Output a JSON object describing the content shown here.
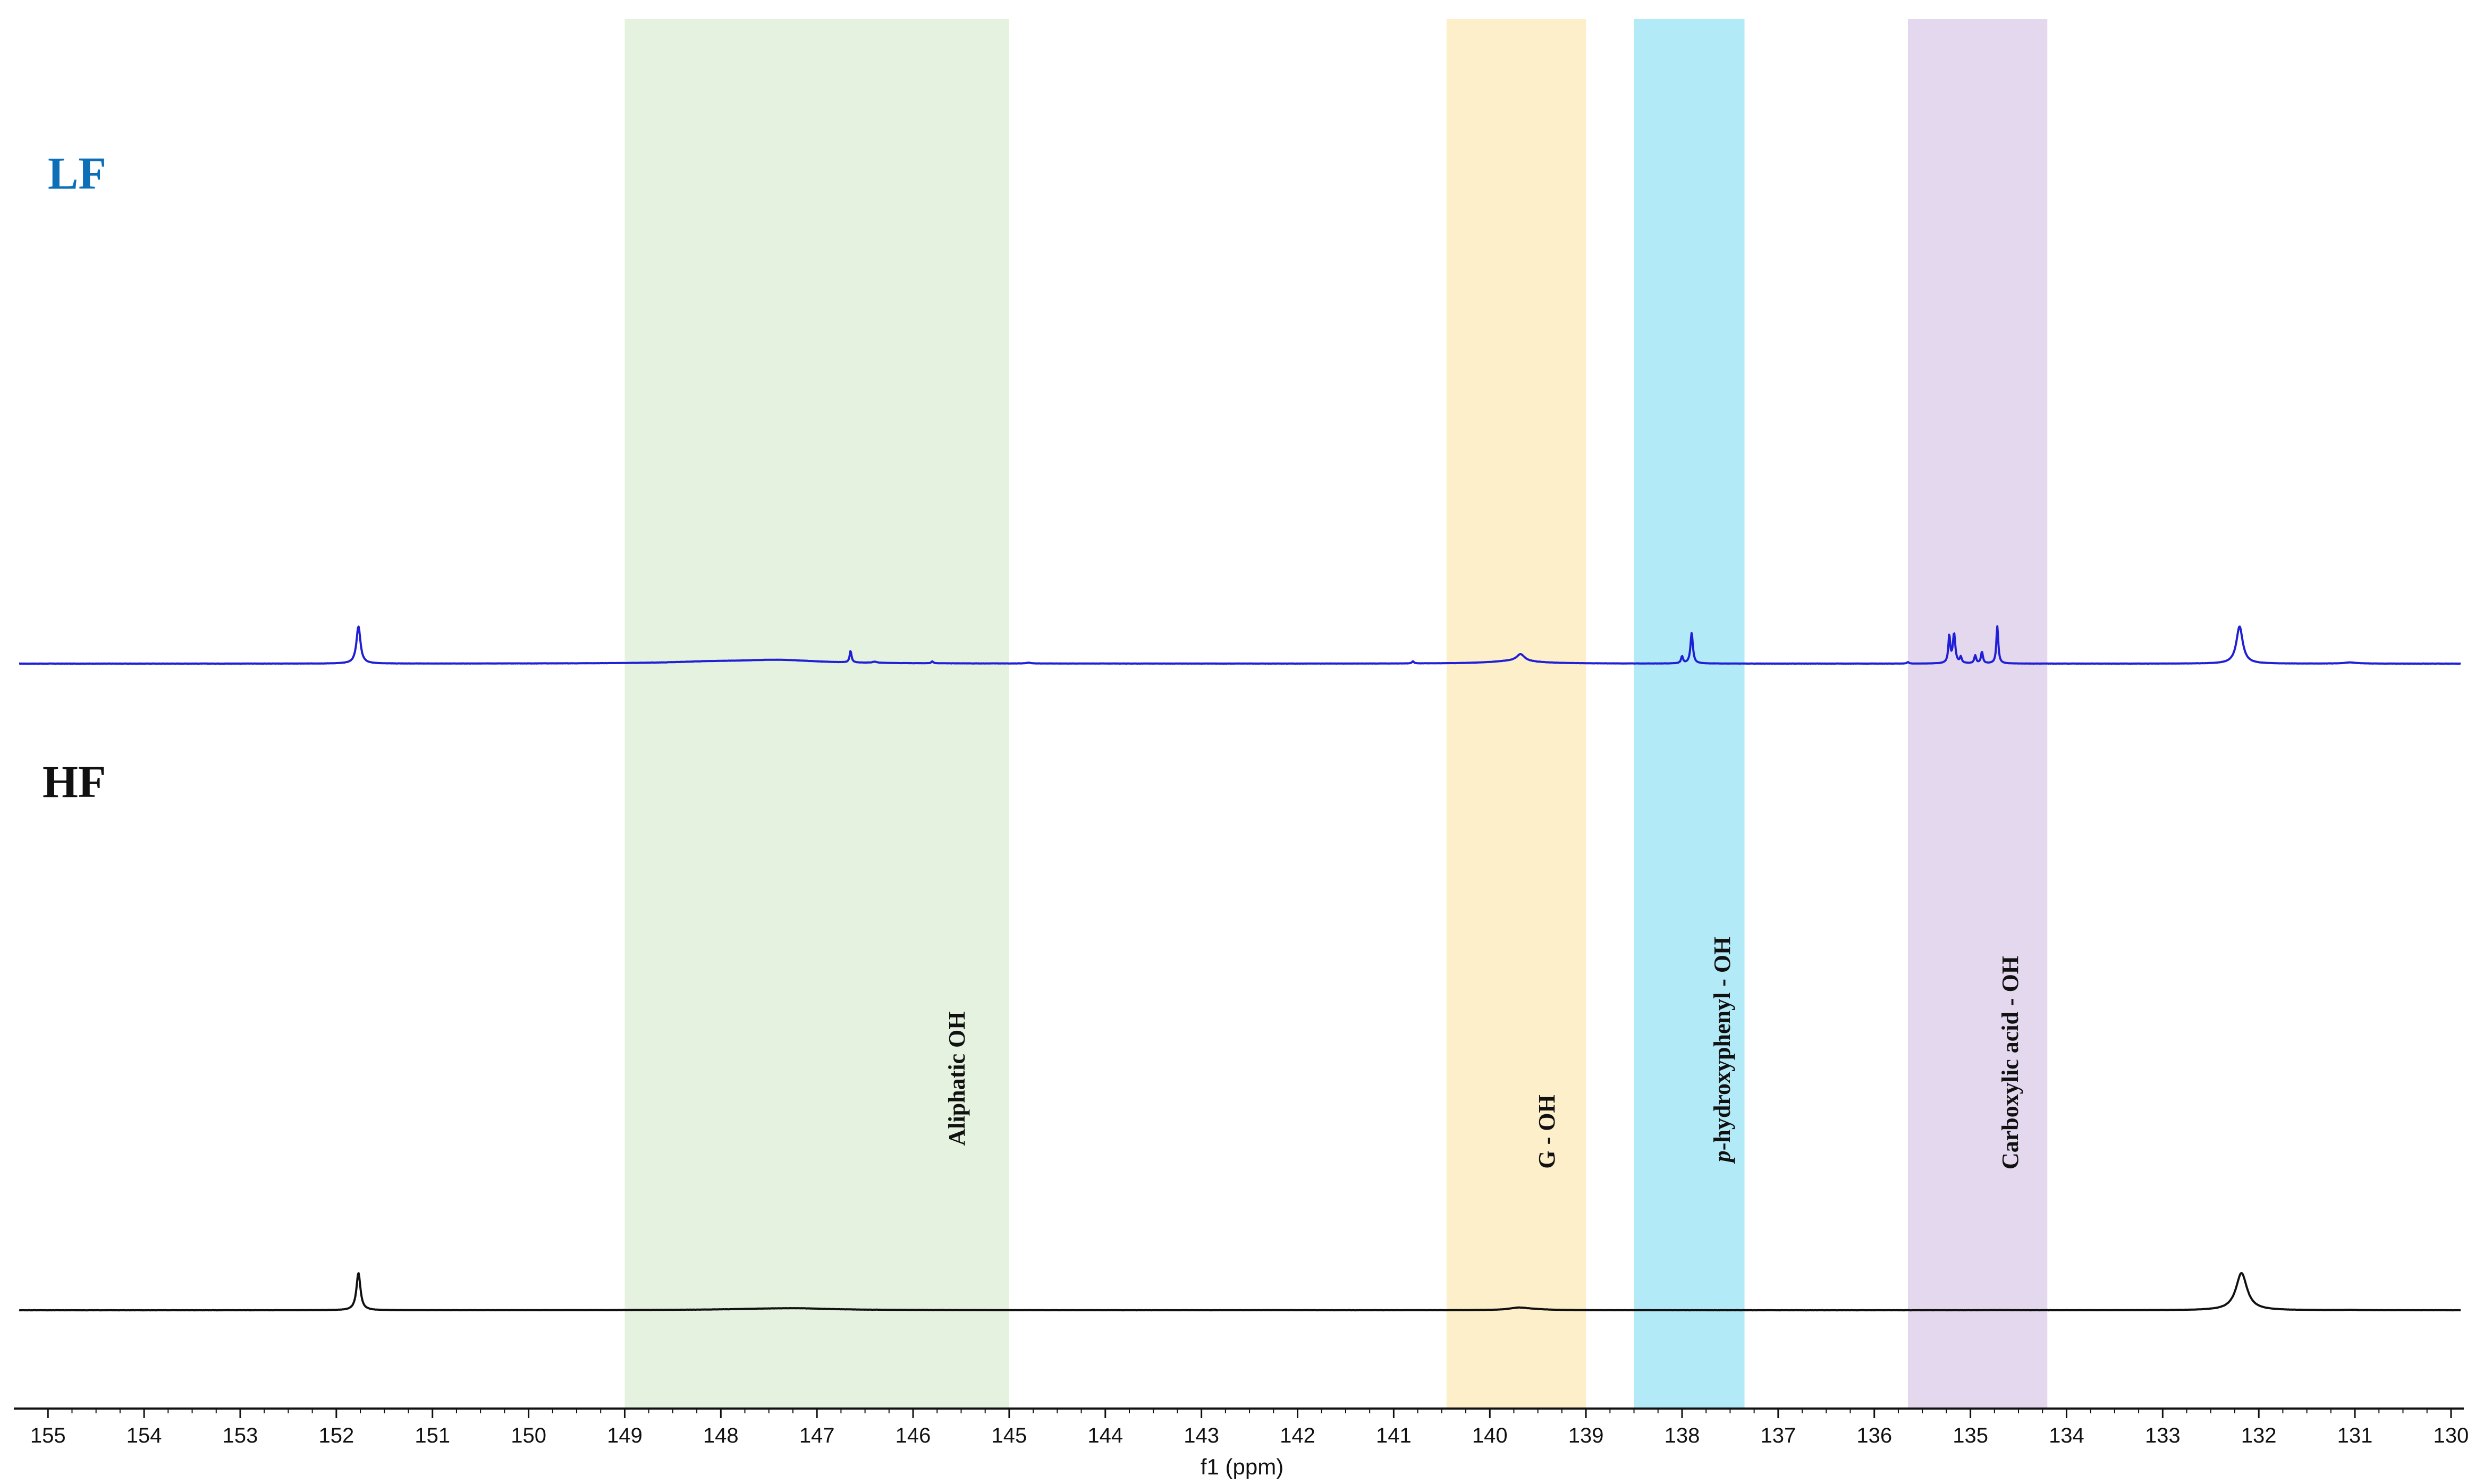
{
  "chart_data": {
    "type": "line",
    "title": "",
    "xlabel": "f1 (ppm)",
    "ylabel": "",
    "xlim": [
      155.3,
      129.9
    ],
    "x_direction": "reversed",
    "grid": false,
    "ticks": [
      155,
      154,
      153,
      152,
      151,
      150,
      149,
      148,
      147,
      146,
      145,
      144,
      143,
      142,
      141,
      140,
      139,
      138,
      137,
      136,
      135,
      134,
      133,
      132,
      131,
      130
    ],
    "tick_labels": [
      "155",
      "154",
      "153",
      "152",
      "151",
      "150",
      "149",
      "148",
      "147",
      "146",
      "145",
      "144",
      "143",
      "142",
      "141",
      "140",
      "139",
      "138",
      "137",
      "136",
      "135",
      "134",
      "133",
      "132",
      "131",
      "130"
    ],
    "regions": [
      {
        "name": "Aliphatic OH",
        "label_prefix": "",
        "label_main": "Aliphatic OH",
        "from_ppm": 149.0,
        "to_ppm": 145.0,
        "color": "#e6f2e0"
      },
      {
        "name": "G - OH",
        "label_prefix": "",
        "label_main": "G - OH",
        "from_ppm": 140.45,
        "to_ppm": 139.0,
        "color": "#fdefc9"
      },
      {
        "name": "p-hydroxyphenyl - OH",
        "label_prefix": "p",
        "label_main": "-hydroxyphenyl - OH",
        "from_ppm": 138.5,
        "to_ppm": 137.35,
        "color": "#b3eaf8"
      },
      {
        "name": "Carboxylic acid - OH",
        "label_prefix": "",
        "label_main": "Carboxylic acid - OH",
        "from_ppm": 135.65,
        "to_ppm": 134.2,
        "color": "#e4d8ee"
      }
    ],
    "series": [
      {
        "name": "LF",
        "color": "#1f1fd6",
        "label_color": "#0d6fb8",
        "baseline_intensity": 0,
        "ylim": [
          0,
          100
        ],
        "peaks": [
          {
            "ppm": 151.77,
            "height": 100,
            "width": 0.025
          },
          {
            "ppm": 132.2,
            "height": 100,
            "width": 0.04
          },
          {
            "ppm": 134.72,
            "height": 100,
            "width": 0.012
          },
          {
            "ppm": 135.17,
            "height": 79,
            "width": 0.015
          },
          {
            "ppm": 135.22,
            "height": 73,
            "width": 0.012
          },
          {
            "ppm": 134.88,
            "height": 31,
            "width": 0.012
          },
          {
            "ppm": 134.95,
            "height": 21,
            "width": 0.012
          },
          {
            "ppm": 135.1,
            "height": 16,
            "width": 0.012
          },
          {
            "ppm": 137.9,
            "height": 82,
            "width": 0.015
          },
          {
            "ppm": 138.0,
            "height": 19,
            "width": 0.012
          },
          {
            "ppm": 146.65,
            "height": 31,
            "width": 0.012
          },
          {
            "ppm": 139.68,
            "height": 19,
            "width": 0.05
          },
          {
            "ppm": 139.75,
            "height": 7,
            "width": 0.3
          },
          {
            "ppm": 147.4,
            "height": 9,
            "width": 0.5
          },
          {
            "ppm": 148.1,
            "height": 4,
            "width": 0.5
          },
          {
            "ppm": 146.4,
            "height": 3,
            "width": 0.03
          },
          {
            "ppm": 145.8,
            "height": 5,
            "width": 0.012
          },
          {
            "ppm": 144.8,
            "height": 2,
            "width": 0.03
          },
          {
            "ppm": 140.8,
            "height": 6,
            "width": 0.012
          },
          {
            "ppm": 131.05,
            "height": 3,
            "width": 0.08
          },
          {
            "ppm": 135.65,
            "height": 4,
            "width": 0.012
          }
        ]
      },
      {
        "name": "HF",
        "color": "#111111",
        "label_color": "#111111",
        "baseline_intensity": 0,
        "ylim": [
          0,
          100
        ],
        "peaks": [
          {
            "ppm": 151.77,
            "height": 100,
            "width": 0.025
          },
          {
            "ppm": 132.18,
            "height": 100,
            "width": 0.07
          },
          {
            "ppm": 147.4,
            "height": 4.3,
            "width": 0.65
          },
          {
            "ppm": 147.15,
            "height": 1.5,
            "width": 0.3
          },
          {
            "ppm": 139.7,
            "height": 6,
            "width": 0.12
          },
          {
            "ppm": 139.55,
            "height": 2,
            "width": 0.2
          },
          {
            "ppm": 131.05,
            "height": 0.8,
            "width": 0.08
          },
          {
            "ppm": 134.7,
            "height": 0.5,
            "width": 0.1
          },
          {
            "ppm": 142.2,
            "height": 0.3,
            "width": 0.2
          }
        ]
      }
    ]
  }
}
